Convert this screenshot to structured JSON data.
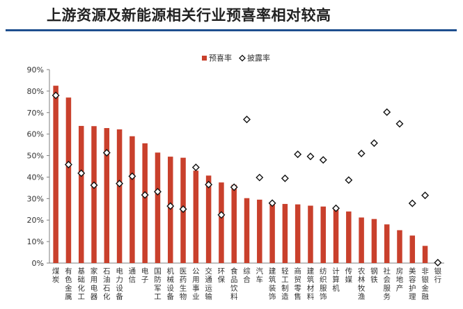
{
  "page": {
    "title": "上游资源及新能源相关行业预喜率相对较高"
  },
  "colors": {
    "bar": "#c9402c",
    "marker_stroke": "#111111",
    "marker_fill": "#ffffff",
    "axis": "#7f7f7f",
    "text": "#333333",
    "title_rule": "#1e4f8f"
  },
  "chart_data": {
    "type": "bar",
    "categories": [
      "煤炭",
      "有色金属",
      "基础化工",
      "家用电器",
      "石油石化",
      "电力设备",
      "通信",
      "电子",
      "国防军工",
      "机械设备",
      "医药生物",
      "公用事业",
      "交通运输",
      "环保",
      "食品饮料",
      "综合",
      "汽车",
      "建筑装饰",
      "轻工制造",
      "商贸零售",
      "建筑材料",
      "纺织服饰",
      "计算机",
      "传媒",
      "农林牧渔",
      "钢铁",
      "社会服务",
      "房地产",
      "美容护理",
      "非银金融",
      "银行"
    ],
    "series": [
      {
        "name": "预喜率",
        "kind": "bar",
        "values": [
          82.5,
          77,
          63.8,
          63.7,
          62.8,
          62.2,
          59,
          55.7,
          51.4,
          49.5,
          49,
          43,
          40.7,
          37.5,
          36.4,
          30.2,
          29.5,
          28.2,
          27.5,
          27.3,
          26.7,
          26.3,
          25.8,
          24,
          21.2,
          20.5,
          18,
          15.3,
          12.8,
          8,
          0
        ]
      },
      {
        "name": "披露率",
        "kind": "marker",
        "values": [
          78,
          45.8,
          41.8,
          36.2,
          51.3,
          37,
          40.4,
          31.7,
          33.2,
          26.5,
          25.1,
          44.5,
          36.5,
          22.4,
          35.3,
          66.8,
          39.8,
          27.9,
          39.4,
          50.6,
          49.6,
          48,
          25.5,
          38.6,
          51,
          55.8,
          70.2,
          64.8,
          27.8,
          31.5,
          0.2
        ]
      }
    ],
    "ylim": [
      0,
      90
    ],
    "yticks": [
      0,
      10,
      20,
      30,
      40,
      50,
      60,
      70,
      80,
      90
    ],
    "ytick_suffix": "%",
    "legend_position": "top-center",
    "grid": false
  }
}
